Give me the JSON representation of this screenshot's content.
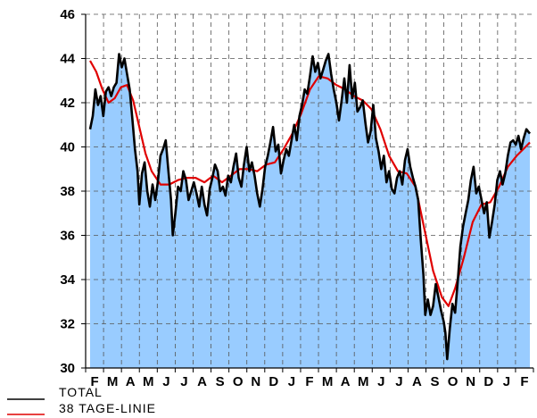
{
  "colors": {
    "area_fill": "#99ccff",
    "total_line": "#000000",
    "ma_line": "#e00000",
    "grid": "#555555"
  },
  "legend": [
    {
      "label": "TOTAL",
      "color": "#000000"
    },
    {
      "label": "38 TAGE-LINIE",
      "color": "#e00000"
    }
  ],
  "chart_data": {
    "type": "area",
    "title": "",
    "xlabel": "",
    "ylabel": "",
    "ylim": [
      30,
      46
    ],
    "yticks": [
      30,
      32,
      34,
      36,
      38,
      40,
      42,
      44,
      46
    ],
    "grid": true,
    "legend_position": "bottom-left",
    "x_range": [
      0,
      1
    ],
    "x_tick_labels": [
      "F",
      "M",
      "A",
      "M",
      "J",
      "J",
      "A",
      "S",
      "O",
      "N",
      "D",
      "J",
      "F",
      "M",
      "A",
      "M",
      "J",
      "J",
      "A",
      "S",
      "O",
      "N",
      "D",
      "J",
      "F"
    ],
    "series": [
      {
        "name": "TOTAL",
        "style": "line+area",
        "points": [
          [
            0.0,
            40.8
          ],
          [
            0.006,
            41.4
          ],
          [
            0.012,
            42.6
          ],
          [
            0.018,
            41.9
          ],
          [
            0.024,
            42.3
          ],
          [
            0.03,
            41.4
          ],
          [
            0.036,
            42.5
          ],
          [
            0.042,
            42.7
          ],
          [
            0.048,
            42.3
          ],
          [
            0.054,
            42.7
          ],
          [
            0.06,
            42.9
          ],
          [
            0.066,
            44.2
          ],
          [
            0.072,
            43.6
          ],
          [
            0.078,
            44.0
          ],
          [
            0.084,
            43.3
          ],
          [
            0.09,
            42.6
          ],
          [
            0.096,
            41.3
          ],
          [
            0.102,
            39.9
          ],
          [
            0.108,
            38.9
          ],
          [
            0.112,
            37.4
          ],
          [
            0.118,
            38.8
          ],
          [
            0.124,
            39.3
          ],
          [
            0.13,
            38.0
          ],
          [
            0.136,
            37.3
          ],
          [
            0.142,
            38.3
          ],
          [
            0.148,
            37.6
          ],
          [
            0.154,
            38.4
          ],
          [
            0.16,
            39.6
          ],
          [
            0.166,
            39.9
          ],
          [
            0.172,
            40.3
          ],
          [
            0.178,
            38.9
          ],
          [
            0.184,
            37.6
          ],
          [
            0.188,
            36.0
          ],
          [
            0.194,
            37.0
          ],
          [
            0.2,
            38.2
          ],
          [
            0.206,
            38.0
          ],
          [
            0.212,
            38.9
          ],
          [
            0.218,
            38.5
          ],
          [
            0.224,
            37.6
          ],
          [
            0.23,
            38.0
          ],
          [
            0.236,
            38.4
          ],
          [
            0.242,
            37.9
          ],
          [
            0.248,
            37.3
          ],
          [
            0.254,
            38.2
          ],
          [
            0.26,
            37.4
          ],
          [
            0.266,
            36.9
          ],
          [
            0.272,
            38.1
          ],
          [
            0.278,
            38.6
          ],
          [
            0.284,
            39.2
          ],
          [
            0.29,
            38.9
          ],
          [
            0.296,
            38.0
          ],
          [
            0.302,
            38.2
          ],
          [
            0.308,
            37.8
          ],
          [
            0.314,
            38.7
          ],
          [
            0.32,
            38.4
          ],
          [
            0.326,
            39.1
          ],
          [
            0.332,
            39.7
          ],
          [
            0.338,
            38.6
          ],
          [
            0.344,
            38.2
          ],
          [
            0.35,
            39.2
          ],
          [
            0.356,
            40.0
          ],
          [
            0.362,
            38.9
          ],
          [
            0.368,
            39.3
          ],
          [
            0.374,
            38.7
          ],
          [
            0.38,
            37.9
          ],
          [
            0.386,
            37.3
          ],
          [
            0.392,
            38.1
          ],
          [
            0.398,
            39.1
          ],
          [
            0.404,
            39.6
          ],
          [
            0.41,
            40.2
          ],
          [
            0.416,
            40.9
          ],
          [
            0.422,
            39.8
          ],
          [
            0.428,
            40.1
          ],
          [
            0.434,
            38.8
          ],
          [
            0.44,
            39.4
          ],
          [
            0.446,
            39.9
          ],
          [
            0.452,
            39.6
          ],
          [
            0.458,
            40.3
          ],
          [
            0.464,
            41.0
          ],
          [
            0.47,
            40.3
          ],
          [
            0.476,
            41.4
          ],
          [
            0.482,
            41.9
          ],
          [
            0.488,
            42.6
          ],
          [
            0.494,
            42.4
          ],
          [
            0.5,
            43.2
          ],
          [
            0.506,
            44.1
          ],
          [
            0.512,
            43.4
          ],
          [
            0.518,
            43.8
          ],
          [
            0.524,
            43.1
          ],
          [
            0.53,
            43.5
          ],
          [
            0.536,
            43.9
          ],
          [
            0.542,
            44.2
          ],
          [
            0.548,
            43.3
          ],
          [
            0.554,
            42.6
          ],
          [
            0.56,
            42.0
          ],
          [
            0.566,
            41.2
          ],
          [
            0.572,
            42.1
          ],
          [
            0.578,
            43.1
          ],
          [
            0.584,
            42.0
          ],
          [
            0.59,
            43.7
          ],
          [
            0.596,
            42.2
          ],
          [
            0.602,
            42.9
          ],
          [
            0.608,
            41.6
          ],
          [
            0.614,
            41.8
          ],
          [
            0.62,
            42.1
          ],
          [
            0.626,
            41.1
          ],
          [
            0.632,
            40.2
          ],
          [
            0.638,
            40.7
          ],
          [
            0.644,
            41.9
          ],
          [
            0.65,
            40.4
          ],
          [
            0.656,
            39.8
          ],
          [
            0.662,
            39.0
          ],
          [
            0.668,
            39.6
          ],
          [
            0.674,
            38.4
          ],
          [
            0.68,
            38.9
          ],
          [
            0.686,
            38.1
          ],
          [
            0.692,
            37.9
          ],
          [
            0.698,
            38.6
          ],
          [
            0.704,
            38.9
          ],
          [
            0.71,
            38.3
          ],
          [
            0.716,
            39.4
          ],
          [
            0.722,
            39.9
          ],
          [
            0.728,
            39.1
          ],
          [
            0.734,
            38.6
          ],
          [
            0.74,
            38.2
          ],
          [
            0.746,
            37.6
          ],
          [
            0.752,
            35.8
          ],
          [
            0.758,
            34.2
          ],
          [
            0.762,
            32.4
          ],
          [
            0.768,
            33.1
          ],
          [
            0.774,
            32.4
          ],
          [
            0.78,
            32.8
          ],
          [
            0.786,
            33.8
          ],
          [
            0.792,
            33.2
          ],
          [
            0.798,
            32.6
          ],
          [
            0.804,
            32.1
          ],
          [
            0.808,
            31.6
          ],
          [
            0.812,
            30.4
          ],
          [
            0.818,
            31.8
          ],
          [
            0.824,
            32.9
          ],
          [
            0.83,
            32.5
          ],
          [
            0.836,
            33.9
          ],
          [
            0.842,
            35.5
          ],
          [
            0.848,
            36.4
          ],
          [
            0.854,
            37.0
          ],
          [
            0.86,
            37.6
          ],
          [
            0.866,
            38.5
          ],
          [
            0.872,
            39.1
          ],
          [
            0.878,
            37.9
          ],
          [
            0.884,
            38.2
          ],
          [
            0.89,
            37.6
          ],
          [
            0.896,
            37.0
          ],
          [
            0.902,
            37.5
          ],
          [
            0.908,
            35.9
          ],
          [
            0.914,
            36.6
          ],
          [
            0.92,
            37.4
          ],
          [
            0.926,
            38.5
          ],
          [
            0.932,
            38.9
          ],
          [
            0.938,
            38.3
          ],
          [
            0.944,
            38.8
          ],
          [
            0.95,
            39.6
          ],
          [
            0.956,
            40.2
          ],
          [
            0.962,
            40.3
          ],
          [
            0.968,
            40.1
          ],
          [
            0.974,
            40.5
          ],
          [
            0.98,
            39.9
          ],
          [
            0.986,
            40.4
          ],
          [
            0.992,
            40.8
          ],
          [
            1.0,
            40.6
          ]
        ]
      },
      {
        "name": "38 TAGE-LINIE",
        "style": "line",
        "points": [
          [
            0.0,
            43.9
          ],
          [
            0.014,
            43.4
          ],
          [
            0.028,
            42.6
          ],
          [
            0.042,
            42.0
          ],
          [
            0.056,
            42.2
          ],
          [
            0.07,
            42.7
          ],
          [
            0.084,
            42.8
          ],
          [
            0.098,
            42.1
          ],
          [
            0.112,
            40.9
          ],
          [
            0.126,
            39.7
          ],
          [
            0.14,
            38.9
          ],
          [
            0.16,
            38.3
          ],
          [
            0.18,
            38.3
          ],
          [
            0.2,
            38.5
          ],
          [
            0.22,
            38.6
          ],
          [
            0.24,
            38.6
          ],
          [
            0.26,
            38.4
          ],
          [
            0.28,
            38.7
          ],
          [
            0.3,
            38.4
          ],
          [
            0.32,
            38.7
          ],
          [
            0.34,
            39.0
          ],
          [
            0.36,
            39.0
          ],
          [
            0.38,
            38.9
          ],
          [
            0.4,
            39.2
          ],
          [
            0.42,
            39.3
          ],
          [
            0.44,
            39.9
          ],
          [
            0.46,
            40.6
          ],
          [
            0.48,
            41.5
          ],
          [
            0.5,
            42.6
          ],
          [
            0.52,
            43.2
          ],
          [
            0.54,
            43.1
          ],
          [
            0.56,
            42.8
          ],
          [
            0.58,
            42.6
          ],
          [
            0.6,
            42.3
          ],
          [
            0.62,
            42.1
          ],
          [
            0.64,
            41.7
          ],
          [
            0.66,
            40.8
          ],
          [
            0.68,
            39.6
          ],
          [
            0.7,
            38.9
          ],
          [
            0.72,
            38.8
          ],
          [
            0.74,
            38.2
          ],
          [
            0.76,
            36.3
          ],
          [
            0.78,
            34.4
          ],
          [
            0.8,
            33.2
          ],
          [
            0.815,
            32.8
          ],
          [
            0.83,
            33.6
          ],
          [
            0.85,
            35.0
          ],
          [
            0.87,
            36.6
          ],
          [
            0.89,
            37.4
          ],
          [
            0.91,
            37.5
          ],
          [
            0.93,
            38.2
          ],
          [
            0.95,
            39.1
          ],
          [
            0.97,
            39.6
          ],
          [
            0.99,
            40.0
          ],
          [
            1.0,
            40.2
          ]
        ]
      }
    ]
  }
}
